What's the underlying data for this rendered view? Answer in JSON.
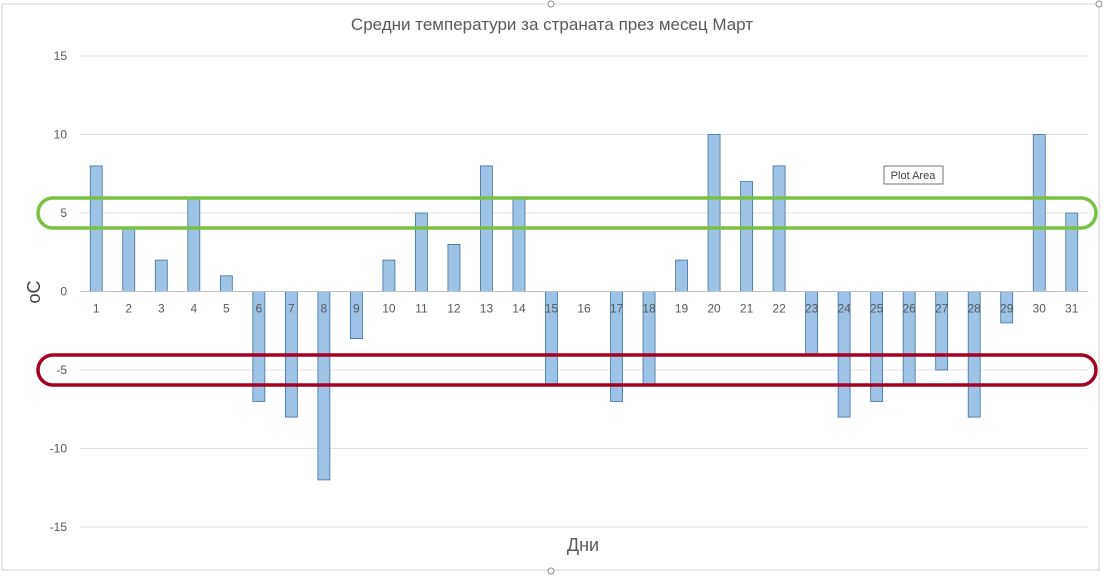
{
  "chart_data": {
    "type": "bar",
    "title": "Средни температури за страната през месец Март",
    "xlabel": "Дни",
    "ylabel": "oC",
    "ylim": [
      -15,
      15
    ],
    "yticks": [
      15,
      10,
      5,
      0,
      -5,
      -10,
      -15
    ],
    "grid": true,
    "legend": "none",
    "categories": [
      "1",
      "2",
      "3",
      "4",
      "5",
      "6",
      "7",
      "8",
      "9",
      "10",
      "11",
      "12",
      "13",
      "14",
      "15",
      "16",
      "17",
      "18",
      "19",
      "20",
      "21",
      "22",
      "23",
      "24",
      "25",
      "26",
      "27",
      "28",
      "29",
      "30",
      "31"
    ],
    "values": [
      8,
      4,
      2,
      6,
      1,
      -7,
      -8,
      -12,
      -3,
      2,
      5,
      3,
      8,
      6,
      -6,
      0,
      -7,
      -6,
      2,
      10,
      7,
      8,
      -4,
      -8,
      -7,
      -6,
      -5,
      -8,
      -2,
      10,
      5
    ],
    "bar_color": "#9dc3e6",
    "bar_stroke": "#41719c",
    "annotations": {
      "tooltip": "Plot Area",
      "highlight_bands": [
        {
          "value": 5,
          "color": "#7ac143"
        },
        {
          "value": -5,
          "color": "#a50021"
        }
      ]
    }
  }
}
